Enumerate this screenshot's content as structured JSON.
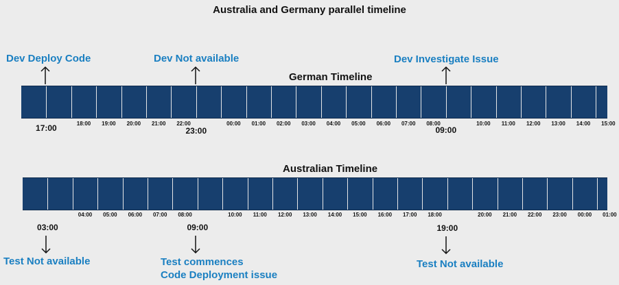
{
  "title": "Australia and Germany parallel timeline",
  "colors": {
    "bar": "#173f6e",
    "accent": "#1a7fc1"
  },
  "german": {
    "label": "German Timeline",
    "ticks": [
      "18:00",
      "19:00",
      "20:00",
      "21:00",
      "22:00",
      "00:00",
      "01:00",
      "02:00",
      "03:00",
      "04:00",
      "05:00",
      "06:00",
      "07:00",
      "08:00",
      "10:00",
      "11:00",
      "12:00",
      "13:00",
      "14:00",
      "15:00"
    ],
    "markers": [
      "17:00",
      "23:00",
      "09:00"
    ],
    "events": [
      "Dev Deploy Code",
      "Dev Not available",
      "Dev Investigate Issue"
    ]
  },
  "australia": {
    "label": "Australian Timeline",
    "ticks": [
      "04:00",
      "05:00",
      "06:00",
      "07:00",
      "08:00",
      "10:00",
      "11:00",
      "12:00",
      "13:00",
      "14:00",
      "15:00",
      "16:00",
      "17:00",
      "18:00",
      "20:00",
      "21:00",
      "22:00",
      "23:00",
      "00:00",
      "01:00"
    ],
    "markers": [
      "03:00",
      "09:00",
      "19:00"
    ],
    "events": [
      [
        "Test Not available"
      ],
      [
        "Test commences",
        "Code Deployment issue"
      ],
      [
        "Test Not available"
      ]
    ]
  }
}
